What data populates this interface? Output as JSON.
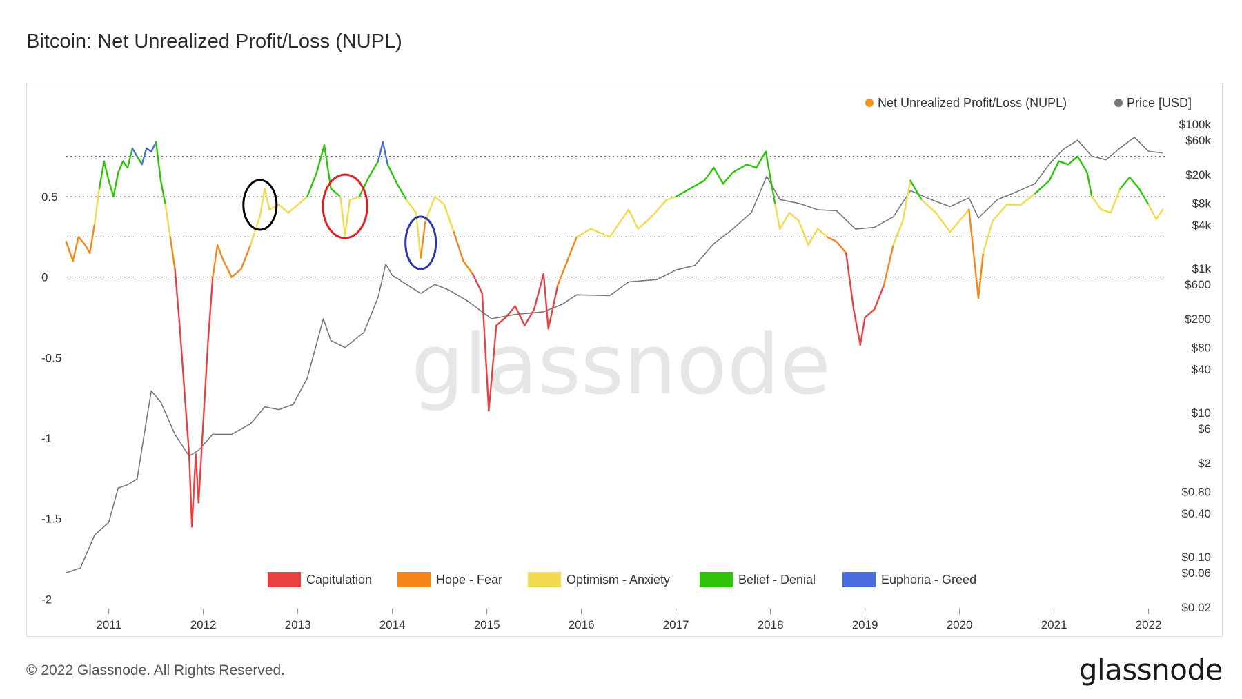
{
  "title": "Bitcoin: Net Unrealized Profit/Loss (NUPL)",
  "footer": {
    "copyright": "© 2022 Glassnode. All Rights Reserved.",
    "logo": "glassnode"
  },
  "watermark": "glassnode",
  "legend_top": [
    {
      "label": "Net Unrealized Profit/Loss (NUPL)",
      "color": "#f7931a"
    },
    {
      "label": "Price [USD]",
      "color": "#777777"
    }
  ],
  "legend_bottom": [
    {
      "label": "Capitulation",
      "color": "#e84142"
    },
    {
      "label": "Hope - Fear",
      "color": "#f7851a"
    },
    {
      "label": "Optimism - Anxiety",
      "color": "#f2d94e"
    },
    {
      "label": "Belief - Denial",
      "color": "#2fc40b"
    },
    {
      "label": "Euphoria - Greed",
      "color": "#4a6ee0"
    }
  ],
  "annotations": [
    {
      "shape": "ellipse",
      "color": "#000000",
      "x": 2012.6
    },
    {
      "shape": "ellipse",
      "color": "#e02020",
      "x": 2013.5
    },
    {
      "shape": "ellipse",
      "color": "#2a3bb0",
      "x": 2014.3
    }
  ],
  "chart_data": {
    "type": "line",
    "title": "Bitcoin: Net Unrealized Profit/Loss (NUPL)",
    "x_ticks": [
      "2011",
      "2012",
      "2013",
      "2014",
      "2015",
      "2016",
      "2017",
      "2018",
      "2019",
      "2020",
      "2021",
      "2022"
    ],
    "xlim": [
      2010.55,
      2022.2
    ],
    "left_axis": {
      "ticks": [
        "0.5",
        "0",
        "-0.5",
        "-1",
        "-1.5",
        "-2"
      ],
      "tick_values": [
        0.5,
        0,
        -0.5,
        -1,
        -1.5,
        -2
      ],
      "ylim": [
        -2.05,
        0.95
      ],
      "reference_lines": [
        0,
        0.25,
        0.5,
        0.75
      ]
    },
    "right_axis": {
      "scale": "log",
      "ticks": [
        "$100k",
        "$60k",
        "$20k",
        "$8k",
        "$4k",
        "$1k",
        "$600",
        "$200",
        "$80",
        "$40",
        "$10",
        "$6",
        "$2",
        "$0.80",
        "$0.40",
        "$0.10",
        "$0.06",
        "$0.02"
      ],
      "tick_values": [
        100000,
        60000,
        20000,
        8000,
        4000,
        1000,
        600,
        200,
        80,
        40,
        10,
        6,
        2,
        0.8,
        0.4,
        0.1,
        0.06,
        0.02
      ],
      "ylim": [
        0.02,
        100000
      ]
    },
    "zones": [
      {
        "name": "Capitulation",
        "range": [
          -2,
          0
        ],
        "color": "#e84142"
      },
      {
        "name": "Hope - Fear",
        "range": [
          0,
          0.25
        ],
        "color": "#f7851a"
      },
      {
        "name": "Optimism - Anxiety",
        "range": [
          0.25,
          0.5
        ],
        "color": "#f2d94e"
      },
      {
        "name": "Belief - Denial",
        "range": [
          0.5,
          0.75
        ],
        "color": "#2fc40b"
      },
      {
        "name": "Euphoria - Greed",
        "range": [
          0.75,
          1
        ],
        "color": "#4a6ee0"
      }
    ],
    "series": [
      {
        "name": "Net Unrealized Profit/Loss (NUPL)",
        "axis": "left",
        "points": [
          [
            2010.55,
            0.22
          ],
          [
            2010.62,
            0.1
          ],
          [
            2010.68,
            0.25
          ],
          [
            2010.75,
            0.2
          ],
          [
            2010.8,
            0.15
          ],
          [
            2010.85,
            0.33
          ],
          [
            2010.9,
            0.55
          ],
          [
            2010.95,
            0.72
          ],
          [
            2011.0,
            0.6
          ],
          [
            2011.05,
            0.5
          ],
          [
            2011.1,
            0.65
          ],
          [
            2011.15,
            0.72
          ],
          [
            2011.2,
            0.68
          ],
          [
            2011.25,
            0.8
          ],
          [
            2011.3,
            0.75
          ],
          [
            2011.35,
            0.7
          ],
          [
            2011.4,
            0.8
          ],
          [
            2011.45,
            0.78
          ],
          [
            2011.5,
            0.84
          ],
          [
            2011.55,
            0.6
          ],
          [
            2011.6,
            0.45
          ],
          [
            2011.65,
            0.25
          ],
          [
            2011.7,
            0.05
          ],
          [
            2011.75,
            -0.3
          ],
          [
            2011.8,
            -0.7
          ],
          [
            2011.85,
            -1.1
          ],
          [
            2011.88,
            -1.55
          ],
          [
            2011.92,
            -1.1
          ],
          [
            2011.95,
            -1.4
          ],
          [
            2012.0,
            -0.9
          ],
          [
            2012.05,
            -0.4
          ],
          [
            2012.1,
            0.0
          ],
          [
            2012.15,
            0.2
          ],
          [
            2012.2,
            0.12
          ],
          [
            2012.3,
            0.0
          ],
          [
            2012.4,
            0.05
          ],
          [
            2012.5,
            0.2
          ],
          [
            2012.6,
            0.38
          ],
          [
            2012.65,
            0.55
          ],
          [
            2012.7,
            0.42
          ],
          [
            2012.8,
            0.45
          ],
          [
            2012.9,
            0.4
          ],
          [
            2013.0,
            0.45
          ],
          [
            2013.1,
            0.5
          ],
          [
            2013.2,
            0.65
          ],
          [
            2013.28,
            0.82
          ],
          [
            2013.35,
            0.55
          ],
          [
            2013.45,
            0.5
          ],
          [
            2013.5,
            0.26
          ],
          [
            2013.55,
            0.48
          ],
          [
            2013.65,
            0.5
          ],
          [
            2013.75,
            0.62
          ],
          [
            2013.85,
            0.72
          ],
          [
            2013.9,
            0.84
          ],
          [
            2013.95,
            0.7
          ],
          [
            2014.05,
            0.58
          ],
          [
            2014.15,
            0.48
          ],
          [
            2014.25,
            0.4
          ],
          [
            2014.3,
            0.12
          ],
          [
            2014.35,
            0.35
          ],
          [
            2014.45,
            0.5
          ],
          [
            2014.55,
            0.45
          ],
          [
            2014.65,
            0.28
          ],
          [
            2014.75,
            0.1
          ],
          [
            2014.85,
            0.02
          ],
          [
            2014.95,
            -0.1
          ],
          [
            2015.02,
            -0.83
          ],
          [
            2015.1,
            -0.3
          ],
          [
            2015.2,
            -0.25
          ],
          [
            2015.3,
            -0.18
          ],
          [
            2015.4,
            -0.3
          ],
          [
            2015.5,
            -0.2
          ],
          [
            2015.6,
            0.02
          ],
          [
            2015.65,
            -0.32
          ],
          [
            2015.75,
            -0.05
          ],
          [
            2015.85,
            0.1
          ],
          [
            2015.95,
            0.25
          ],
          [
            2016.1,
            0.3
          ],
          [
            2016.3,
            0.25
          ],
          [
            2016.5,
            0.42
          ],
          [
            2016.6,
            0.3
          ],
          [
            2016.75,
            0.38
          ],
          [
            2016.9,
            0.48
          ],
          [
            2017.0,
            0.5
          ],
          [
            2017.15,
            0.55
          ],
          [
            2017.3,
            0.6
          ],
          [
            2017.4,
            0.68
          ],
          [
            2017.5,
            0.58
          ],
          [
            2017.6,
            0.65
          ],
          [
            2017.75,
            0.7
          ],
          [
            2017.85,
            0.68
          ],
          [
            2017.95,
            0.78
          ],
          [
            2018.05,
            0.45
          ],
          [
            2018.1,
            0.3
          ],
          [
            2018.2,
            0.4
          ],
          [
            2018.3,
            0.35
          ],
          [
            2018.4,
            0.2
          ],
          [
            2018.5,
            0.3
          ],
          [
            2018.6,
            0.25
          ],
          [
            2018.7,
            0.22
          ],
          [
            2018.8,
            0.15
          ],
          [
            2018.88,
            -0.2
          ],
          [
            2018.95,
            -0.42
          ],
          [
            2019.0,
            -0.25
          ],
          [
            2019.1,
            -0.2
          ],
          [
            2019.2,
            -0.05
          ],
          [
            2019.3,
            0.2
          ],
          [
            2019.4,
            0.35
          ],
          [
            2019.48,
            0.6
          ],
          [
            2019.6,
            0.48
          ],
          [
            2019.75,
            0.4
          ],
          [
            2019.9,
            0.28
          ],
          [
            2020.0,
            0.35
          ],
          [
            2020.1,
            0.42
          ],
          [
            2020.2,
            -0.13
          ],
          [
            2020.25,
            0.15
          ],
          [
            2020.35,
            0.35
          ],
          [
            2020.5,
            0.45
          ],
          [
            2020.65,
            0.45
          ],
          [
            2020.8,
            0.52
          ],
          [
            2020.95,
            0.6
          ],
          [
            2021.05,
            0.72
          ],
          [
            2021.15,
            0.7
          ],
          [
            2021.25,
            0.75
          ],
          [
            2021.35,
            0.65
          ],
          [
            2021.4,
            0.5
          ],
          [
            2021.5,
            0.42
          ],
          [
            2021.6,
            0.4
          ],
          [
            2021.7,
            0.55
          ],
          [
            2021.8,
            0.62
          ],
          [
            2021.9,
            0.55
          ],
          [
            2022.0,
            0.45
          ],
          [
            2022.08,
            0.36
          ],
          [
            2022.15,
            0.42
          ]
        ]
      },
      {
        "name": "Price [USD]",
        "axis": "right",
        "points": [
          [
            2010.55,
            0.06
          ],
          [
            2010.7,
            0.07
          ],
          [
            2010.85,
            0.2
          ],
          [
            2011.0,
            0.3
          ],
          [
            2011.1,
            0.9
          ],
          [
            2011.2,
            1.0
          ],
          [
            2011.3,
            1.2
          ],
          [
            2011.4,
            8
          ],
          [
            2011.45,
            20
          ],
          [
            2011.55,
            14
          ],
          [
            2011.7,
            5
          ],
          [
            2011.85,
            2.5
          ],
          [
            2011.95,
            3
          ],
          [
            2012.1,
            5
          ],
          [
            2012.3,
            5
          ],
          [
            2012.5,
            7
          ],
          [
            2012.65,
            12
          ],
          [
            2012.8,
            11
          ],
          [
            2012.95,
            13
          ],
          [
            2013.1,
            30
          ],
          [
            2013.27,
            200
          ],
          [
            2013.35,
            100
          ],
          [
            2013.5,
            80
          ],
          [
            2013.7,
            130
          ],
          [
            2013.85,
            400
          ],
          [
            2013.93,
            1150
          ],
          [
            2014.0,
            800
          ],
          [
            2014.15,
            600
          ],
          [
            2014.3,
            450
          ],
          [
            2014.45,
            600
          ],
          [
            2014.6,
            500
          ],
          [
            2014.8,
            350
          ],
          [
            2015.05,
            200
          ],
          [
            2015.3,
            230
          ],
          [
            2015.6,
            250
          ],
          [
            2015.8,
            320
          ],
          [
            2015.95,
            430
          ],
          [
            2016.3,
            420
          ],
          [
            2016.5,
            650
          ],
          [
            2016.8,
            700
          ],
          [
            2017.0,
            950
          ],
          [
            2017.2,
            1100
          ],
          [
            2017.4,
            2200
          ],
          [
            2017.6,
            3500
          ],
          [
            2017.8,
            6000
          ],
          [
            2017.96,
            19000
          ],
          [
            2018.1,
            9000
          ],
          [
            2018.3,
            8000
          ],
          [
            2018.5,
            6500
          ],
          [
            2018.7,
            6300
          ],
          [
            2018.9,
            3500
          ],
          [
            2019.1,
            3700
          ],
          [
            2019.3,
            5200
          ],
          [
            2019.48,
            12000
          ],
          [
            2019.7,
            9000
          ],
          [
            2019.9,
            7200
          ],
          [
            2020.1,
            9500
          ],
          [
            2020.2,
            5000
          ],
          [
            2020.4,
            9000
          ],
          [
            2020.6,
            11500
          ],
          [
            2020.8,
            15000
          ],
          [
            2020.95,
            28000
          ],
          [
            2021.1,
            45000
          ],
          [
            2021.25,
            60000
          ],
          [
            2021.4,
            36000
          ],
          [
            2021.55,
            32000
          ],
          [
            2021.7,
            47000
          ],
          [
            2021.85,
            66000
          ],
          [
            2022.0,
            42000
          ],
          [
            2022.15,
            40000
          ]
        ]
      }
    ]
  }
}
